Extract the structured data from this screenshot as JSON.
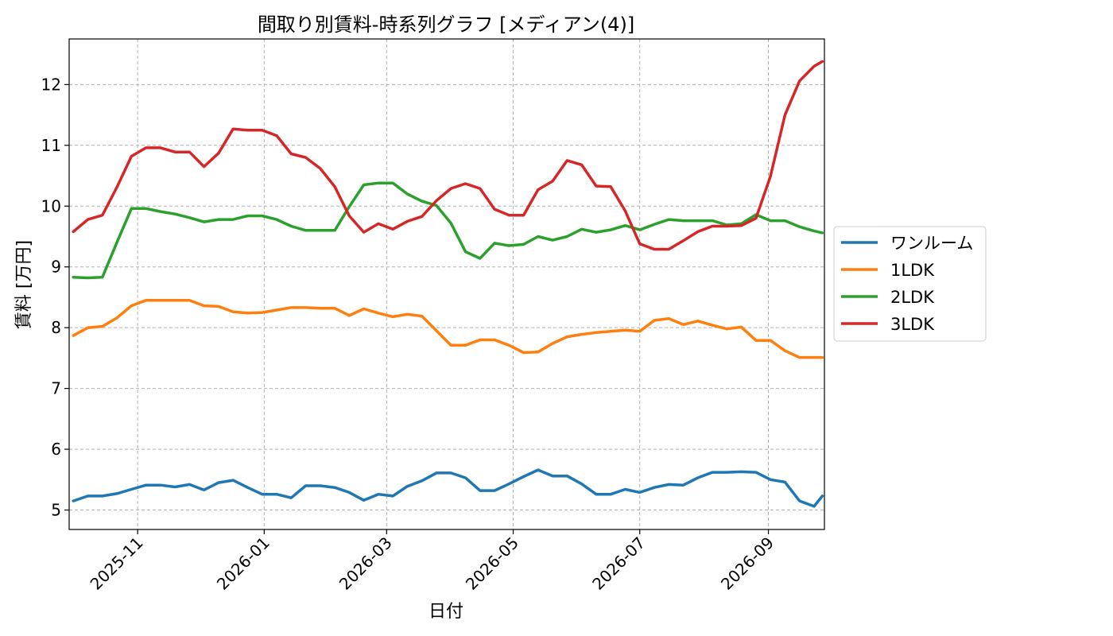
{
  "chart_data": {
    "type": "line",
    "title": "間取り別賃料-時系列グラフ [メディアン(4)]",
    "xlabel": "日付",
    "ylabel": "賃料 [万円]",
    "x_range": [
      "2025-09-29",
      "2026-09-28"
    ],
    "ylim": [
      4.68,
      12.75
    ],
    "xticks": [
      "2025-11",
      "2026-01",
      "2026-03",
      "2026-05",
      "2026-07",
      "2026-09"
    ],
    "yticks": [
      5,
      6,
      7,
      8,
      9,
      10,
      11,
      12
    ],
    "grid": true,
    "legend_position": "center-right-outside",
    "x": [
      "2025-10-01",
      "2025-10-08",
      "2025-10-15",
      "2025-10-22",
      "2025-10-29",
      "2025-11-05",
      "2025-11-12",
      "2025-11-19",
      "2025-11-26",
      "2025-12-03",
      "2025-12-10",
      "2025-12-17",
      "2025-12-24",
      "2025-12-31",
      "2026-01-07",
      "2026-01-14",
      "2026-01-21",
      "2026-01-28",
      "2026-02-04",
      "2026-02-11",
      "2026-02-18",
      "2026-02-25",
      "2026-03-04",
      "2026-03-11",
      "2026-03-18",
      "2026-03-25",
      "2026-04-01",
      "2026-04-08",
      "2026-04-15",
      "2026-04-22",
      "2026-04-29",
      "2026-05-06",
      "2026-05-13",
      "2026-05-20",
      "2026-05-27",
      "2026-06-03",
      "2026-06-10",
      "2026-06-17",
      "2026-06-24",
      "2026-07-01",
      "2026-07-08",
      "2026-07-15",
      "2026-07-22",
      "2026-07-29",
      "2026-08-05",
      "2026-08-12",
      "2026-08-19",
      "2026-08-26",
      "2026-09-02",
      "2026-09-09",
      "2026-09-16",
      "2026-09-23",
      "2026-09-27"
    ],
    "series": [
      {
        "name": "ワンルーム",
        "color": "#1f77b4",
        "values": [
          5.15,
          5.23,
          5.23,
          5.27,
          5.34,
          5.41,
          5.41,
          5.38,
          5.42,
          5.33,
          5.45,
          5.49,
          5.37,
          5.26,
          5.26,
          5.2,
          5.4,
          5.4,
          5.37,
          5.29,
          5.16,
          5.26,
          5.23,
          5.39,
          5.48,
          5.61,
          5.61,
          5.53,
          5.32,
          5.32,
          5.43,
          5.55,
          5.66,
          5.56,
          5.56,
          5.43,
          5.26,
          5.26,
          5.34,
          5.29,
          5.37,
          5.42,
          5.41,
          5.53,
          5.62,
          5.62,
          5.63,
          5.62,
          5.5,
          5.46,
          5.15,
          5.06,
          5.23
        ]
      },
      {
        "name": "1LDK",
        "color": "#ff7f0e",
        "values": [
          7.87,
          8.0,
          8.02,
          8.16,
          8.36,
          8.45,
          8.45,
          8.45,
          8.45,
          8.36,
          8.35,
          8.26,
          8.24,
          8.25,
          8.29,
          8.33,
          8.33,
          8.32,
          8.32,
          8.2,
          8.31,
          8.24,
          8.18,
          8.22,
          8.19,
          7.95,
          7.71,
          7.71,
          7.8,
          7.8,
          7.71,
          7.59,
          7.6,
          7.74,
          7.85,
          7.89,
          7.92,
          7.94,
          7.96,
          7.94,
          8.12,
          8.15,
          8.05,
          8.11,
          8.04,
          7.98,
          8.01,
          7.79,
          7.79,
          7.62,
          7.51,
          7.51,
          7.51
        ]
      },
      {
        "name": "2LDK",
        "color": "#2ca02c",
        "values": [
          8.83,
          8.82,
          8.83,
          9.4,
          9.96,
          9.96,
          9.91,
          9.87,
          9.81,
          9.74,
          9.78,
          9.78,
          9.84,
          9.84,
          9.78,
          9.67,
          9.6,
          9.6,
          9.6,
          9.99,
          10.35,
          10.38,
          10.38,
          10.2,
          10.08,
          10.01,
          9.72,
          9.25,
          9.14,
          9.39,
          9.35,
          9.37,
          9.5,
          9.44,
          9.5,
          9.62,
          9.57,
          9.61,
          9.68,
          9.61,
          9.7,
          9.78,
          9.76,
          9.76,
          9.76,
          9.69,
          9.71,
          9.86,
          9.76,
          9.76,
          9.66,
          9.59,
          9.56
        ]
      },
      {
        "name": "3LDK",
        "color": "#d62728",
        "values": [
          9.58,
          9.78,
          9.85,
          10.31,
          10.82,
          10.96,
          10.96,
          10.89,
          10.89,
          10.65,
          10.87,
          11.27,
          11.25,
          11.25,
          11.16,
          10.86,
          10.8,
          10.62,
          10.32,
          9.84,
          9.57,
          9.71,
          9.62,
          9.75,
          9.83,
          10.09,
          10.29,
          10.37,
          10.29,
          9.95,
          9.85,
          9.85,
          10.27,
          10.41,
          10.75,
          10.68,
          10.33,
          10.32,
          9.92,
          9.38,
          9.29,
          9.29,
          9.43,
          9.58,
          9.67,
          9.67,
          9.68,
          9.8,
          10.49,
          11.5,
          12.06,
          12.3,
          12.38
        ]
      }
    ]
  }
}
